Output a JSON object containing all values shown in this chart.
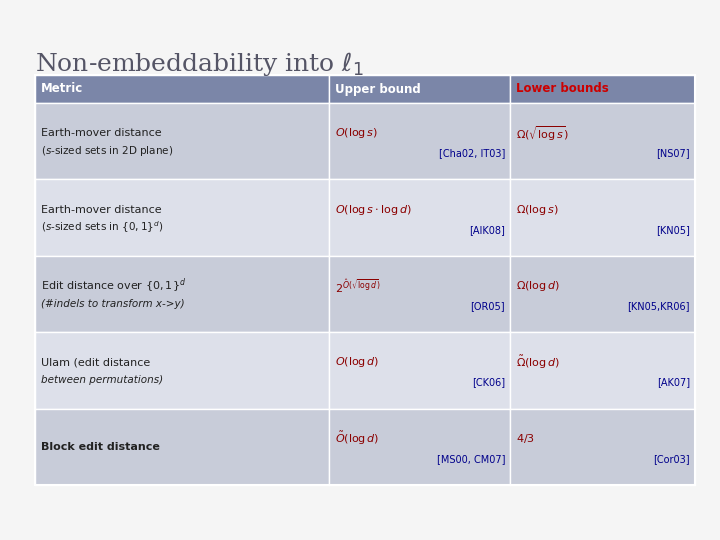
{
  "title": "Non-embeddability into $\\ell_1$",
  "title_fontsize": 18,
  "background_color": "#f5f5f5",
  "header_bg_color": "#7b86a8",
  "row_bg_color_dark": "#c8ccd9",
  "row_bg_color_light": "#dde0ea",
  "header_text_color": "#ffffff",
  "lower_bound_header_color": "#cc0000",
  "metric_color": "#222222",
  "upper_bound_color": "#8b0000",
  "lower_bound_color": "#8b0000",
  "ref_color": "#00008b",
  "headers": [
    "Metric",
    "Upper bound",
    "Lower bounds"
  ],
  "rows": [
    {
      "metric_line1": "Earth-mover distance",
      "metric_line2": "($s$-sized sets in 2D plane)",
      "upper_math": "$O(\\log s)$",
      "upper_ref": "[Cha02, IT03]",
      "lower_math": "$\\Omega(\\sqrt{\\log s})$",
      "lower_ref": "[NS07]",
      "bg": "dark"
    },
    {
      "metric_line1": "Earth-mover distance",
      "metric_line2": "($s$-sized sets in $\\{0,1\\}^d$)",
      "upper_math": "$O(\\log s \\cdot \\log d)$",
      "upper_ref": "[AIK08]",
      "lower_math": "$\\Omega(\\log s)$",
      "lower_ref": "[KN05]",
      "bg": "light"
    },
    {
      "metric_line1": "Edit distance over $\\{0,1\\}^d$",
      "metric_line2": "(#indels to transform x->y)",
      "upper_math": "$2^{\\hat{O}(\\sqrt{\\log d})}$",
      "upper_ref": "[OR05]",
      "lower_math": "$\\Omega(\\log d)$",
      "lower_ref": "[KN05,KR06]",
      "bg": "dark"
    },
    {
      "metric_line1": "Ulam (edit distance",
      "metric_line2": "between permutations)",
      "upper_math": "$O(\\log d)$",
      "upper_ref": "[CK06]",
      "lower_math": "$\\tilde{\\Omega}(\\log d)$",
      "lower_ref": "[AK07]",
      "bg": "light"
    },
    {
      "metric_line1": "Block edit distance",
      "metric_line2": "",
      "upper_math": "$\\tilde{O}(\\log d)$",
      "upper_ref": "[MS00, CM07]",
      "lower_math": "$4/3$",
      "lower_ref": "[Cor03]",
      "bg": "dark"
    }
  ]
}
